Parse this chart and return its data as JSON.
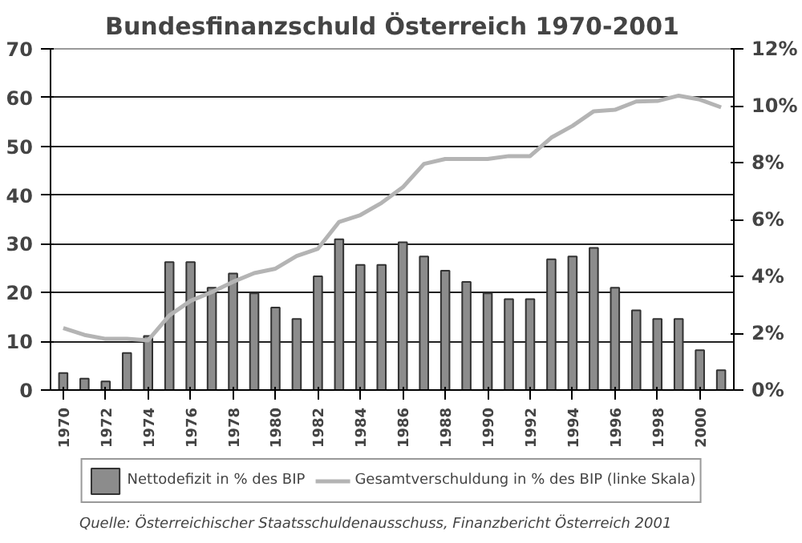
{
  "chart_data": {
    "type": "bar",
    "title": "Bundesfinanzschuld Österreich 1970-2001",
    "categories": [
      "1970",
      null,
      "1972",
      null,
      "1974",
      null,
      "1976",
      null,
      "1978",
      null,
      "1980",
      null,
      "1982",
      null,
      "1984",
      null,
      "1986",
      null,
      "1988",
      null,
      "1990",
      null,
      "1992",
      null,
      "1994",
      null,
      "1996",
      null,
      "1998",
      null,
      "2000",
      null
    ],
    "series": [
      {
        "name": "Nettodefizit in % des BIP",
        "type": "bar",
        "axis": "y2",
        "color": "#8c8c8c",
        "values": [
          0.6,
          0.4,
          0.3,
          1.3,
          1.9,
          4.5,
          4.5,
          3.6,
          4.1,
          3.4,
          2.9,
          2.5,
          4.0,
          5.3,
          4.4,
          4.4,
          5.2,
          4.7,
          4.2,
          3.8,
          3.4,
          3.2,
          3.2,
          4.6,
          4.7,
          5.0,
          3.6,
          2.8,
          2.5,
          2.5,
          1.4,
          0.7
        ]
      },
      {
        "name": "Gesamtverschuldung in % des BIP (linke Skala)",
        "type": "line",
        "color": "#b4b4b4",
        "values": [
          12.7,
          11.3,
          10.5,
          10.5,
          10.2,
          15.3,
          18.3,
          20.1,
          22.2,
          24.0,
          24.9,
          27.5,
          29.0,
          34.5,
          35.9,
          38.4,
          41.6,
          46.4,
          47.4,
          47.4,
          47.4,
          48.0,
          48.0,
          51.8,
          54.2,
          57.2,
          57.5,
          59.2,
          59.3,
          60.4,
          59.6,
          58.0
        ]
      }
    ],
    "ylim": [
      0,
      70
    ],
    "yticks": [
      0,
      10,
      20,
      30,
      40,
      50,
      60,
      70
    ],
    "y2lim": [
      0,
      12
    ],
    "y2ticks": [
      {
        "value": 0,
        "label": "0%"
      },
      {
        "value": 2,
        "label": "2%"
      },
      {
        "value": 4,
        "label": "4%"
      },
      {
        "value": 6,
        "label": "6%"
      },
      {
        "value": 8,
        "label": "8%"
      },
      {
        "value": 10,
        "label": "10%"
      },
      {
        "value": 12,
        "label": "12%"
      }
    ],
    "grid": "y",
    "legend": "bottom",
    "annotations": [
      "Quelle: Österreichischer Staatsschuldenausschuss, Finanzbericht Österreich 2001"
    ]
  }
}
